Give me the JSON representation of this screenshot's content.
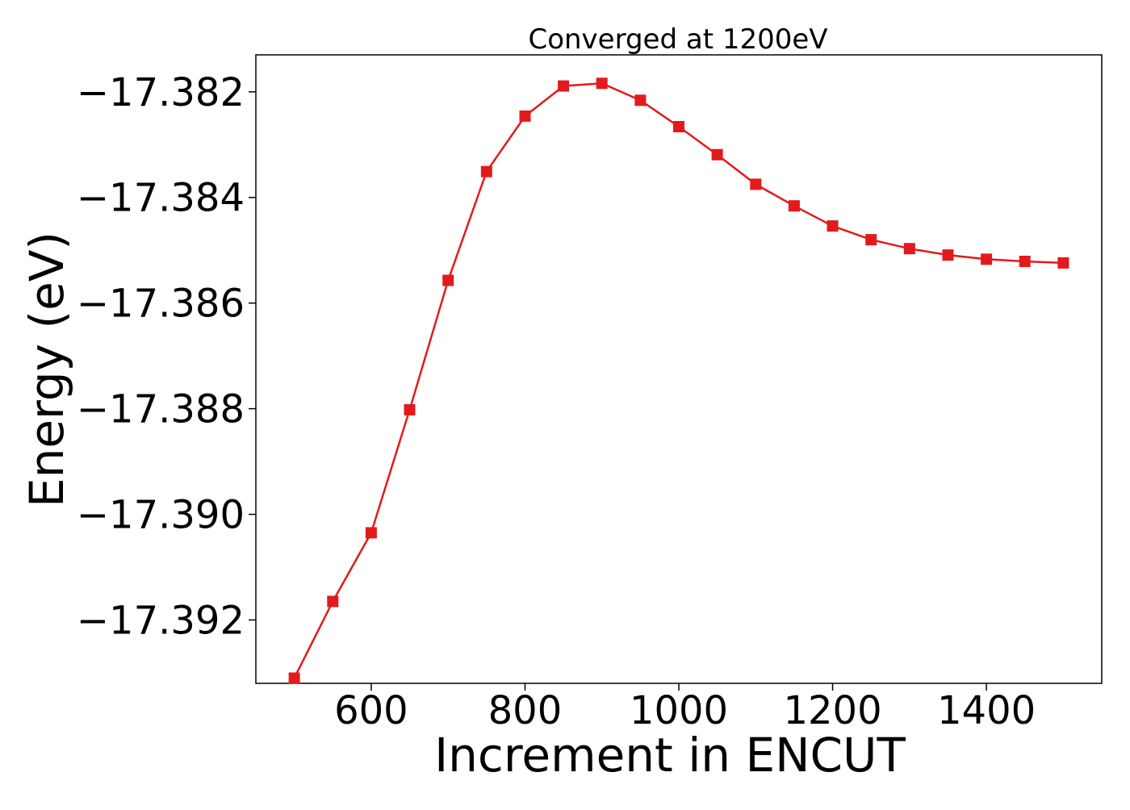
{
  "chart_data": {
    "type": "line",
    "title": "Converged at 1200eV",
    "xlabel": "Increment in ENCUT",
    "ylabel": "Energy (eV)",
    "xlim": [
      450,
      1550
    ],
    "ylim": [
      -17.3932,
      -17.3813
    ],
    "x_ticks": [
      600,
      800,
      1000,
      1200,
      1400
    ],
    "x_tick_labels": [
      "600",
      "800",
      "1000",
      "1200",
      "1400"
    ],
    "y_ticks": [
      -17.382,
      -17.384,
      -17.386,
      -17.388,
      -17.39,
      -17.392
    ],
    "y_tick_labels": [
      "−17.382",
      "−17.384",
      "−17.386",
      "−17.388",
      "−17.390",
      "−17.392"
    ],
    "grid": false,
    "legend": "none",
    "series": [
      {
        "color": "#e31a1c",
        "marker": "square",
        "x": [
          500,
          550,
          600,
          650,
          700,
          750,
          800,
          850,
          900,
          950,
          1000,
          1050,
          1100,
          1150,
          1200,
          1250,
          1300,
          1350,
          1400,
          1450,
          1500
        ],
        "y": [
          -17.3931,
          -17.39165,
          -17.39035,
          -17.38802,
          -17.38557,
          -17.38351,
          -17.38246,
          -17.38189,
          -17.38184,
          -17.38216,
          -17.38266,
          -17.38319,
          -17.38375,
          -17.38416,
          -17.38454,
          -17.3848,
          -17.38497,
          -17.38509,
          -17.38517,
          -17.38521,
          -17.38524
        ]
      }
    ]
  }
}
